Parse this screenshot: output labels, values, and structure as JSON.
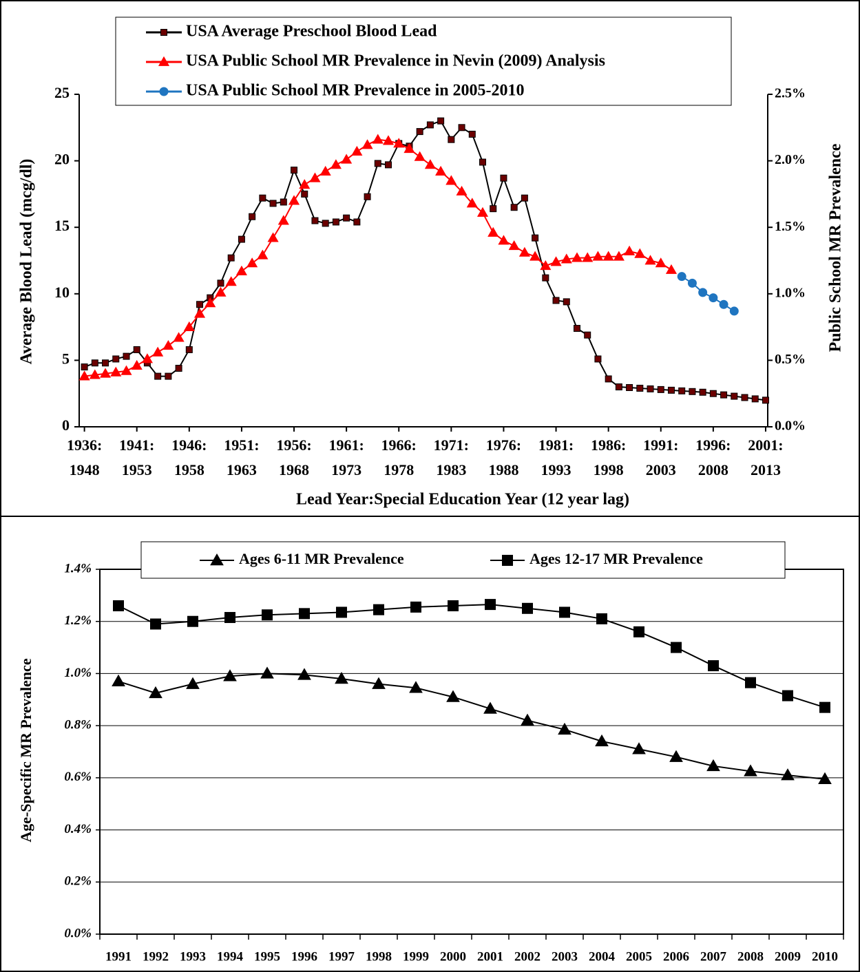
{
  "chart_data": [
    {
      "type": "line",
      "xlabel": "Lead Year:Special Education Year (12 year lag)",
      "ylabel": "Average Blood Lead (mcg/dl)",
      "y2label": "Public School MR Prevalence",
      "x": [
        1936,
        1937,
        1938,
        1939,
        1940,
        1941,
        1942,
        1943,
        1944,
        1945,
        1946,
        1947,
        1948,
        1949,
        1950,
        1951,
        1952,
        1953,
        1954,
        1955,
        1956,
        1957,
        1958,
        1959,
        1960,
        1961,
        1962,
        1963,
        1964,
        1965,
        1966,
        1967,
        1968,
        1969,
        1970,
        1971,
        1972,
        1973,
        1974,
        1975,
        1976,
        1977,
        1978,
        1979,
        1980,
        1981,
        1982,
        1983,
        1984,
        1985,
        1986,
        1987,
        1988,
        1989,
        1990,
        1991,
        1992,
        1993,
        1994,
        1995,
        1996,
        1997,
        1998,
        1999,
        2000,
        2001
      ],
      "xlim": [
        1935.5,
        2001.2
      ],
      "xticks": [
        {
          "value": 1936,
          "label": "1936:\n1948"
        },
        {
          "value": 1941,
          "label": "1941:\n1953"
        },
        {
          "value": 1946,
          "label": "1946:\n1958"
        },
        {
          "value": 1951,
          "label": "1951:\n1963"
        },
        {
          "value": 1956,
          "label": "1956:\n1968"
        },
        {
          "value": 1961,
          "label": "1961:\n1973"
        },
        {
          "value": 1966,
          "label": "1966:\n1978"
        },
        {
          "value": 1971,
          "label": "1971:\n1983"
        },
        {
          "value": 1976,
          "label": "1976:\n1988"
        },
        {
          "value": 1981,
          "label": "1981:\n1993"
        },
        {
          "value": 1986,
          "label": "1986:\n1998"
        },
        {
          "value": 1991,
          "label": "1991:\n2003"
        },
        {
          "value": 1996,
          "label": "1996:\n2008"
        },
        {
          "value": 2001,
          "label": "2001:\n2013"
        }
      ],
      "ylim": [
        0,
        25
      ],
      "yticks": [
        0,
        5,
        10,
        15,
        20,
        25
      ],
      "y2lim": [
        0,
        2.5
      ],
      "y2ticks": [
        {
          "value": 0,
          "label": "0.0%"
        },
        {
          "value": 0.5,
          "label": "0.5%"
        },
        {
          "value": 1,
          "label": "1.0%"
        },
        {
          "value": 1.5,
          "label": "1.5%"
        },
        {
          "value": 2,
          "label": "2.0%"
        },
        {
          "value": 2.5,
          "label": "2.5%"
        }
      ],
      "series": [
        {
          "name": "USA Average Preschool Blood Lead",
          "color": "#000000",
          "marker": "square",
          "marker_color": "#6b0000",
          "values": [
            4.5,
            4.8,
            4.8,
            5.1,
            5.3,
            5.8,
            4.8,
            3.8,
            3.8,
            4.4,
            5.8,
            9.2,
            9.7,
            10.8,
            12.7,
            14.1,
            15.8,
            17.2,
            16.8,
            16.9,
            19.3,
            17.5,
            15.5,
            15.3,
            15.4,
            15.7,
            15.4,
            17.3,
            19.8,
            19.7,
            21.3,
            21.1,
            22.2,
            22.7,
            23.0,
            21.6,
            22.5,
            22.0,
            19.9,
            16.4,
            18.7,
            16.5,
            17.2,
            14.2,
            11.2,
            9.5,
            9.4,
            7.4,
            6.9,
            5.1,
            3.6,
            3.0,
            2.95,
            2.9,
            2.85,
            2.8,
            2.75,
            2.7,
            2.65,
            2.6,
            2.5,
            2.4,
            2.3,
            2.2,
            2.1,
            2.0
          ]
        },
        {
          "name": "USA Public School MR Prevalence  in Nevin (2009) Analysis",
          "color": "#ff0000",
          "marker": "triangle",
          "marker_color": "#ff0000",
          "axis": "y2",
          "values": [
            0.38,
            0.39,
            0.4,
            0.41,
            0.42,
            0.46,
            0.51,
            0.56,
            0.61,
            0.67,
            0.75,
            0.85,
            0.93,
            1.01,
            1.09,
            1.17,
            1.23,
            1.29,
            1.42,
            1.55,
            1.7,
            1.82,
            1.87,
            1.92,
            1.97,
            2.01,
            2.07,
            2.12,
            2.16,
            2.15,
            2.13,
            2.09,
            2.03,
            1.97,
            1.92,
            1.85,
            1.77,
            1.68,
            1.61,
            1.46,
            1.4,
            1.36,
            1.31,
            1.28,
            1.21,
            1.24,
            1.26,
            1.27,
            1.27,
            1.28,
            1.28,
            1.28,
            1.32,
            1.3,
            1.25,
            1.23,
            1.18,
            null,
            null,
            null,
            null,
            null,
            null,
            null,
            null,
            null
          ]
        },
        {
          "name": "USA Public School MR Prevalence in 2005-2010",
          "color": "#1f75c0",
          "marker": "circle",
          "marker_color": "#1f75c0",
          "axis": "y2",
          "values": [
            null,
            null,
            null,
            null,
            null,
            null,
            null,
            null,
            null,
            null,
            null,
            null,
            null,
            null,
            null,
            null,
            null,
            null,
            null,
            null,
            null,
            null,
            null,
            null,
            null,
            null,
            null,
            null,
            null,
            null,
            null,
            null,
            null,
            null,
            null,
            null,
            null,
            null,
            null,
            null,
            null,
            null,
            null,
            null,
            null,
            null,
            null,
            null,
            null,
            null,
            null,
            null,
            null,
            null,
            null,
            null,
            null,
            1.13,
            1.08,
            1.01,
            0.97,
            0.92,
            0.87,
            null,
            null,
            null
          ]
        }
      ]
    },
    {
      "type": "line",
      "ylabel": "Age-Specific MR Prevalence",
      "categories": [
        "1991",
        "1992",
        "1993",
        "1994",
        "1995",
        "1996",
        "1997",
        "1998",
        "1999",
        "2000",
        "2001",
        "2002",
        "2003",
        "2004",
        "2005",
        "2006",
        "2007",
        "2008",
        "2009",
        "2010"
      ],
      "ylim": [
        0,
        1.4
      ],
      "yticks": [
        {
          "value": 0,
          "label": "0.0%"
        },
        {
          "value": 0.2,
          "label": "0.2%"
        },
        {
          "value": 0.4,
          "label": "0.4%"
        },
        {
          "value": 0.6,
          "label": "0.6%"
        },
        {
          "value": 0.8,
          "label": "0.8%"
        },
        {
          "value": 1,
          "label": "1.0%"
        },
        {
          "value": 1.2,
          "label": "1.2%"
        },
        {
          "value": 1.4,
          "label": "1.4%"
        }
      ],
      "grid": true,
      "series": [
        {
          "name": "Ages 6-11 MR Prevalence",
          "color": "#000000",
          "marker": "triangle",
          "marker_color": "#000000",
          "values": [
            0.97,
            0.925,
            0.96,
            0.99,
            1.0,
            0.995,
            0.98,
            0.96,
            0.945,
            0.91,
            0.865,
            0.82,
            0.785,
            0.74,
            0.71,
            0.68,
            0.645,
            0.625,
            0.61,
            0.595
          ]
        },
        {
          "name": "Ages 12-17 MR Prevalence",
          "color": "#000000",
          "marker": "square",
          "marker_color": "#000000",
          "values": [
            1.26,
            1.19,
            1.2,
            1.215,
            1.225,
            1.23,
            1.235,
            1.245,
            1.255,
            1.26,
            1.265,
            1.25,
            1.235,
            1.21,
            1.16,
            1.1,
            1.03,
            0.965,
            0.915,
            0.87
          ]
        }
      ]
    }
  ]
}
